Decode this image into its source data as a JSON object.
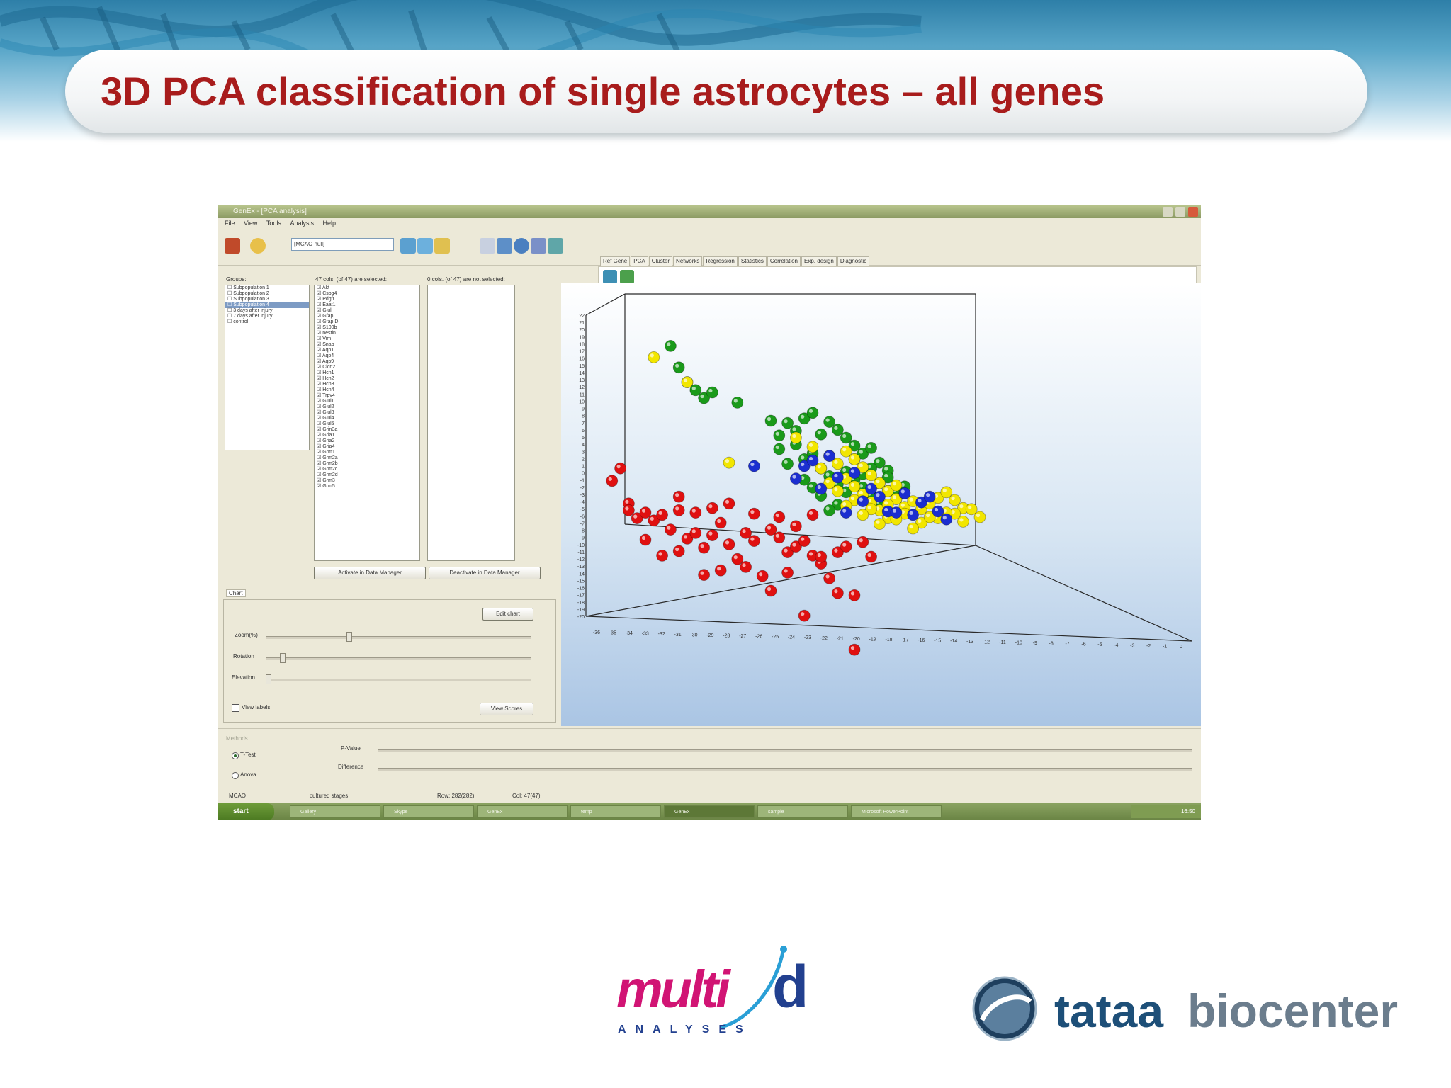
{
  "slide": {
    "title": "3D PCA classification of single astrocytes – all genes"
  },
  "window": {
    "title": "GenEx - [PCA analysis]",
    "menu": [
      "File",
      "View",
      "Tools",
      "Analysis",
      "Help"
    ]
  },
  "toolbar": {
    "dataset": "[MCAO null]",
    "tabs": [
      "Ref Gene",
      "PCA",
      "Cluster",
      "Networks",
      "Regression",
      "Statistics",
      "Correlation",
      "Exp. design",
      "Diagnostic"
    ]
  },
  "groups": {
    "label": "Groups:",
    "items": [
      "Subpopulation 1",
      "Subpopulation 2",
      "Subpopulation 3",
      "Subpopulation 4",
      "3 days after injury",
      "7 days after injury",
      "control"
    ]
  },
  "selected_cols": {
    "label": "47 cols. (of 47) are selected:",
    "genes": [
      "Akt",
      "Cspg4",
      "Pdgfr",
      "Eaat1",
      "Glul",
      "Gfap",
      "Gfap D",
      "S100b",
      "nestin",
      "Vim",
      "Snap",
      "Aqp1",
      "Aqp4",
      "Aqp9",
      "Clcn2",
      "Hcn1",
      "Hcn2",
      "Hcn3",
      "Hcn4",
      "Trpv4",
      "Glul1",
      "Glul2",
      "Glul3",
      "Glul4",
      "Glul5",
      "Grin3a",
      "Gria1",
      "Gria2",
      "Gria4",
      "Grm1",
      "Grm2a",
      "Grm2b",
      "Grm2c",
      "Grm2d",
      "Grm3",
      "Grm5"
    ],
    "activate_button": "Activate in Data Manager"
  },
  "unselected_cols": {
    "label": "0 cols. (of 47) are not selected:",
    "deactivate_button": "Deactivate in Data Manager"
  },
  "chart_panel": {
    "tab": "Chart",
    "edit_button": "Edit chart",
    "zoom_label": "Zoom(%)",
    "rotation_label": "Rotation",
    "elevation_label": "Elevation",
    "view_labels": "View labels",
    "view_scores_button": "View Scores"
  },
  "methods": {
    "label": "Methods",
    "options": [
      "T-Test",
      "Anova"
    ],
    "selected": "T-Test",
    "pvalue_label": "P-Value",
    "difference_label": "Difference"
  },
  "status": {
    "project": "MCAO",
    "stages": "cultured stages",
    "row": "Row: 282(282)",
    "col": "Col: 47(47)"
  },
  "taskbar": {
    "start": "start",
    "items": [
      "Gallery",
      "Skype",
      "GenEx",
      "temp",
      "GenEx",
      "sample",
      "Microsoft PowerPoint"
    ],
    "clock": "16:50"
  },
  "colors": {
    "title_red": "#a81c1c",
    "series_red": "#e01010",
    "series_green": "#1a9a1a",
    "series_yellow": "#f2e600",
    "series_blue": "#1b2ed0"
  },
  "chart_data": {
    "type": "scatter",
    "title": "",
    "xlabel": "",
    "ylabel": "",
    "zlabel": "",
    "y_ticks": [
      22,
      21,
      20,
      19,
      18,
      17,
      16,
      15,
      14,
      13,
      12,
      11,
      10,
      9,
      8,
      7,
      6,
      5,
      4,
      3,
      2,
      1,
      0,
      -1,
      -2,
      -3,
      -4,
      -5,
      -6,
      -7,
      -8,
      -9,
      -10,
      -11,
      -12,
      -13,
      -14,
      -15,
      -16,
      -17,
      -18,
      -19,
      -20
    ],
    "x_ticks": [
      -36,
      -35,
      -34,
      -33,
      -32,
      -31,
      -30,
      -29,
      -28,
      -27,
      -26,
      -25,
      -24,
      -23,
      -22,
      -21,
      -20,
      -19,
      -18,
      -17,
      -16,
      -15,
      -14,
      -13,
      -12,
      -11,
      -10,
      -9,
      -8,
      -7,
      -6,
      -5,
      -4,
      -3,
      -2,
      -1,
      0
    ],
    "series": [
      {
        "color": "#e01010",
        "points": [
          [
            -35,
            -2
          ],
          [
            -34,
            0
          ],
          [
            -33,
            -5
          ],
          [
            -32,
            -7
          ],
          [
            -31,
            -6
          ],
          [
            -30,
            -7
          ],
          [
            -29,
            -6
          ],
          [
            -28,
            -8
          ],
          [
            -27,
            -5
          ],
          [
            -26,
            -9
          ],
          [
            -25,
            -8
          ],
          [
            -24,
            -10
          ],
          [
            -23,
            -4
          ],
          [
            -22,
            -6
          ],
          [
            -21,
            -9
          ],
          [
            -20,
            -11
          ],
          [
            -19,
            -7
          ],
          [
            -18,
            -8
          ],
          [
            -17,
            -13
          ],
          [
            -16,
            -6
          ],
          [
            -15,
            -7
          ],
          [
            -14,
            -9
          ],
          [
            -13,
            -8
          ],
          [
            -12,
            -7
          ],
          [
            -11,
            -9
          ],
          [
            -10,
            -10
          ],
          [
            -9,
            -12
          ],
          [
            -8,
            -8
          ],
          [
            -7,
            -7
          ],
          [
            -6,
            -14
          ],
          [
            -5,
            -6
          ],
          [
            -33,
            -6
          ],
          [
            -31,
            -10
          ],
          [
            -29,
            -12
          ],
          [
            -27,
            -11
          ],
          [
            -24,
            -14
          ],
          [
            -22,
            -13
          ],
          [
            -19,
            -12
          ],
          [
            -16,
            -15
          ],
          [
            -14,
            -12
          ],
          [
            -12,
            -18
          ],
          [
            -10,
            -9
          ],
          [
            -8,
            -14
          ],
          [
            -6,
            -22
          ],
          [
            -4,
            -8
          ],
          [
            -27,
            -3
          ],
          [
            -25,
            -5
          ],
          [
            -23,
            -8
          ],
          [
            -21,
            -3
          ],
          [
            -18,
            -4
          ],
          [
            -15,
            -4
          ],
          [
            -13,
            -5
          ],
          [
            -11,
            -3
          ]
        ]
      },
      {
        "color": "#1a9a1a",
        "points": [
          [
            -28,
            19
          ],
          [
            -27,
            16
          ],
          [
            -26,
            14
          ],
          [
            -25,
            13
          ],
          [
            -24,
            12
          ],
          [
            -23,
            13
          ],
          [
            -20,
            12
          ],
          [
            -16,
            10
          ],
          [
            -15,
            8
          ],
          [
            -14,
            10
          ],
          [
            -13,
            9
          ],
          [
            -12,
            11
          ],
          [
            -11,
            12
          ],
          [
            -10,
            9
          ],
          [
            -9,
            11
          ],
          [
            -8,
            10
          ],
          [
            -7,
            9
          ],
          [
            -6,
            8
          ],
          [
            -5,
            7
          ],
          [
            -4,
            8
          ],
          [
            -3,
            6
          ],
          [
            -2,
            5
          ],
          [
            -13,
            7
          ],
          [
            -12,
            5
          ],
          [
            -11,
            6
          ],
          [
            -10,
            4
          ],
          [
            -9,
            3
          ],
          [
            -8,
            2
          ],
          [
            -7,
            4
          ],
          [
            -6,
            3
          ],
          [
            -5,
            2
          ],
          [
            -4,
            1
          ],
          [
            -3,
            3
          ],
          [
            -2,
            2
          ],
          [
            -1,
            1
          ],
          [
            -14,
            4
          ],
          [
            -12,
            2
          ],
          [
            -10,
            0
          ],
          [
            -8,
            -1
          ],
          [
            -6,
            6
          ],
          [
            -4,
            5
          ],
          [
            -2,
            4
          ],
          [
            0,
            3
          ],
          [
            -15,
            6
          ],
          [
            -11,
            1
          ],
          [
            -9,
            -2
          ],
          [
            -7,
            1
          ],
          [
            -5,
            4
          ],
          [
            -3,
            0
          ],
          [
            -1,
            2
          ]
        ]
      },
      {
        "color": "#f2e600",
        "points": [
          [
            -30,
            17
          ],
          [
            -26,
            14
          ],
          [
            -21,
            3
          ],
          [
            -13,
            8
          ],
          [
            -11,
            7
          ],
          [
            -9,
            6
          ],
          [
            -8,
            5
          ],
          [
            -7,
            7
          ],
          [
            -6,
            6
          ],
          [
            -5,
            5
          ],
          [
            -4,
            4
          ],
          [
            -3,
            3
          ],
          [
            -2,
            2
          ],
          [
            -1,
            1
          ],
          [
            0,
            0
          ],
          [
            -7,
            3
          ],
          [
            -6,
            2
          ],
          [
            -5,
            1
          ],
          [
            -4,
            0
          ],
          [
            -3,
            -1
          ],
          [
            -2,
            -2
          ],
          [
            -1,
            3
          ],
          [
            0,
            2
          ],
          [
            1,
            1
          ],
          [
            2,
            0
          ],
          [
            3,
            1
          ],
          [
            4,
            2
          ],
          [
            5,
            3
          ],
          [
            6,
            2
          ],
          [
            7,
            1
          ],
          [
            -8,
            1
          ],
          [
            -6,
            0
          ],
          [
            -4,
            -1
          ],
          [
            -2,
            0
          ],
          [
            0,
            -1
          ],
          [
            2,
            -2
          ],
          [
            4,
            -1
          ],
          [
            6,
            0
          ],
          [
            8,
            1
          ],
          [
            -10,
            4
          ],
          [
            -9,
            2
          ],
          [
            -7,
            -1
          ],
          [
            -5,
            -2
          ],
          [
            -3,
            -3
          ],
          [
            -1,
            -2
          ],
          [
            1,
            -3
          ],
          [
            3,
            -1
          ],
          [
            5,
            0
          ],
          [
            7,
            -1
          ],
          [
            9,
            0
          ]
        ]
      },
      {
        "color": "#1b2ed0",
        "points": [
          [
            -18,
            3
          ],
          [
            -13,
            2
          ],
          [
            -12,
            4
          ],
          [
            -10,
            1
          ],
          [
            -8,
            3
          ],
          [
            -6,
            4
          ],
          [
            -5,
            0
          ],
          [
            -3,
            1
          ],
          [
            -2,
            -1
          ],
          [
            0,
            2
          ],
          [
            1,
            -1
          ],
          [
            2,
            1
          ],
          [
            4,
            0
          ],
          [
            -11,
            5
          ],
          [
            -7,
            -2
          ],
          [
            -4,
            2
          ],
          [
            -1,
            -1
          ],
          [
            3,
            2
          ],
          [
            5,
            -1
          ],
          [
            -9,
            6
          ]
        ]
      }
    ]
  }
}
